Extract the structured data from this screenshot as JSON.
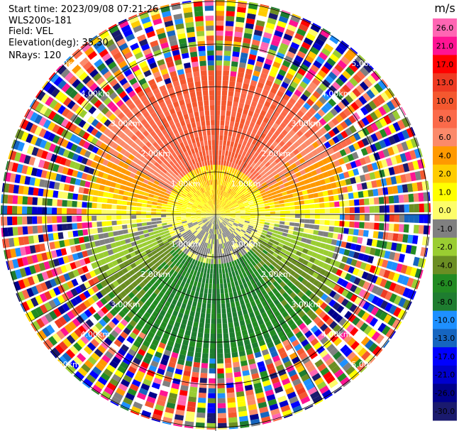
{
  "header": {
    "start_time": "Start time: 2023/09/08 07:21:26",
    "instrument": "WLS200s-181",
    "field": "Field: VEL",
    "elevation": "Elevation(deg): 35.30",
    "nrays": "NRays: 120"
  },
  "chart_data": {
    "type": "heatmap",
    "projection": "polar-ppi",
    "field": "VEL",
    "elevation_deg": 35.3,
    "n_rays": 120,
    "range_rings_km": [
      1.0,
      2.0,
      3.0,
      4.0,
      5.0
    ],
    "range_ring_labels": [
      "1.00km",
      "2.00km",
      "3.00km",
      "4.00km",
      "5.00km"
    ],
    "colorbar": {
      "unit": "m/s",
      "tick_labels": [
        "26.0",
        "21.0",
        "17.0",
        "13.0",
        "10.0",
        "8.0",
        "6.0",
        "4.0",
        "2.0",
        "1.0",
        "0.0",
        "-1.0",
        "-2.0",
        "-4.0",
        "-6.0",
        "-8.0",
        "-10.0",
        "-13.0",
        "-17.0",
        "-21.0",
        "-26.0",
        "-30.0"
      ],
      "colors": [
        "#ff66b3",
        "#ff1493",
        "#ff0000",
        "#ee3a22",
        "#f4582f",
        "#fb6a4a",
        "#fb8a6a",
        "#ff9900",
        "#ffcc00",
        "#ffff00",
        "#fdfd6a",
        "#808080",
        "#9acd32",
        "#6b8e23",
        "#228b22",
        "#1e7d30",
        "#1e90ff",
        "#1565c0",
        "#0000ff",
        "#0000cd",
        "#00008b",
        "#1a1a6e"
      ]
    },
    "description_regions": {
      "near_north": "positive velocities 6 to 10 m/s (salmon / orange / yellow)",
      "near_south": "negative velocities -4 to -10 m/s (green / blue)",
      "east_west_band": "near zero velocities (gray)",
      "far_range": "noise, random colors beyond ~2.8 km"
    }
  }
}
